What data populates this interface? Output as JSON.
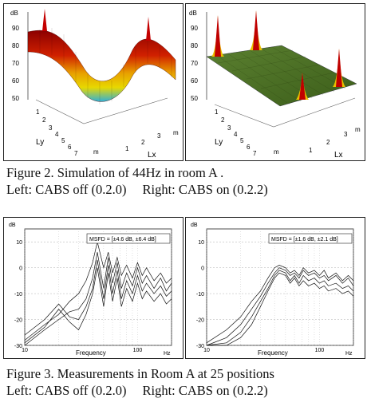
{
  "figure2": {
    "caption": "Figure 2. Simulation of 44Hz in room A .",
    "caption_left": "Left: CABS off (0.2.0)",
    "caption_right": "Right: CABS on (0.2.2)",
    "left_panel": {
      "z_unit": "dB",
      "z_ticks": [
        "90",
        "80",
        "70",
        "60",
        "50"
      ],
      "y_ticks": [
        "1",
        "2",
        "3",
        "4",
        "5",
        "6",
        "7"
      ],
      "y_label": "Ly",
      "y_unit": "m",
      "x_ticks": [
        "1",
        "2",
        "3"
      ],
      "x_label": "Lx",
      "x_unit": "m",
      "colors": {
        "high": "#a00000",
        "mid": "#e8c000",
        "low": "#20a8d0"
      }
    },
    "right_panel": {
      "z_unit": "dB",
      "z_ticks": [
        "90",
        "80",
        "70",
        "60",
        "50"
      ],
      "y_ticks": [
        "1",
        "2",
        "3",
        "4",
        "5",
        "6",
        "7"
      ],
      "y_label": "Ly",
      "y_unit": "m",
      "x_ticks": [
        "1",
        "2",
        "3"
      ],
      "x_label": "Lx",
      "x_unit": "m",
      "colors": {
        "surface": "#4a6e22",
        "peak": "#b00000"
      }
    }
  },
  "figure3": {
    "caption": "Figure 3. Measurements in Room A at 25 positions",
    "caption_left": "Left: CABS off (0.2.0)",
    "caption_right": "Right: CABS on (0.2.2)",
    "left_panel": {
      "y_unit": "dB",
      "y_ticks": [
        "10",
        "0",
        "-10",
        "-20",
        "-30"
      ],
      "x_ticks": [
        "10",
        "100"
      ],
      "x_unit": "Hz",
      "x_label": "Frequency",
      "legend": "MSFD = [±4.6 dB, ±6.4 dB]",
      "chart_data": {
        "type": "line",
        "x_scale": "log",
        "xlim": [
          10,
          200
        ],
        "ylim": [
          -30,
          15
        ],
        "series": [
          {
            "x": [
              10,
              15,
              20,
              25,
              30,
              35,
              40,
              44,
              50,
              55,
              60,
              66,
              72,
              80,
              90,
              100,
              110,
              120,
              140,
              160,
              180,
              200
            ],
            "values": [
              -28,
              -22,
              -18,
              -13,
              -10,
              -5,
              2,
              10,
              0,
              6,
              -2,
              4,
              -3,
              1,
              -4,
              2,
              -3,
              0,
              -5,
              -2,
              -6,
              -4
            ]
          },
          {
            "x": [
              10,
              15,
              20,
              25,
              30,
              35,
              40,
              44,
              50,
              55,
              60,
              66,
              72,
              80,
              90,
              100,
              110,
              120,
              140,
              160,
              180,
              200
            ],
            "values": [
              -30,
              -24,
              -20,
              -17,
              -16,
              -12,
              -4,
              6,
              -8,
              4,
              -6,
              2,
              -8,
              -2,
              -7,
              0,
              -6,
              -3,
              -8,
              -4,
              -9,
              -6
            ]
          },
          {
            "x": [
              10,
              15,
              20,
              25,
              30,
              35,
              40,
              44,
              50,
              55,
              60,
              66,
              72,
              80,
              90,
              100,
              110,
              120,
              140,
              160,
              180,
              200
            ],
            "values": [
              -26,
              -20,
              -14,
              -19,
              -20,
              -15,
              -8,
              3,
              -12,
              1,
              -10,
              -1,
              -12,
              -5,
              -10,
              -3,
              -9,
              -6,
              -10,
              -7,
              -11,
              -9
            ]
          },
          {
            "x": [
              10,
              15,
              20,
              25,
              30,
              35,
              40,
              44,
              50,
              55,
              60,
              66,
              72,
              80,
              90,
              100,
              110,
              120,
              140,
              160,
              180,
              200
            ],
            "values": [
              -29,
              -23,
              -16,
              -21,
              -24,
              -18,
              -10,
              0,
              -15,
              -2,
              -13,
              -4,
              -15,
              -8,
              -13,
              -6,
              -12,
              -9,
              -13,
              -10,
              -14,
              -12
            ]
          }
        ]
      }
    },
    "right_panel": {
      "y_unit": "dB",
      "y_ticks": [
        "10",
        "0",
        "-10",
        "-20",
        "-30"
      ],
      "x_ticks": [
        "10",
        "100"
      ],
      "x_unit": "Hz",
      "x_label": "Frequency",
      "legend": "MSFD = [±1.6 dB, ±2.1 dB]",
      "chart_data": {
        "type": "line",
        "x_scale": "log",
        "xlim": [
          10,
          200
        ],
        "ylim": [
          -30,
          15
        ],
        "series": [
          {
            "x": [
              10,
              15,
              20,
              25,
              30,
              35,
              40,
              44,
              50,
              55,
              60,
              66,
              72,
              80,
              90,
              100,
              110,
              120,
              140,
              160,
              180,
              200
            ],
            "values": [
              -30,
              -27,
              -22,
              -16,
              -11,
              -6,
              -2,
              0,
              -1,
              -3,
              -2,
              -4,
              -1,
              -3,
              -2,
              -4,
              -3,
              -5,
              -3,
              -6,
              -4,
              -7
            ]
          },
          {
            "x": [
              10,
              15,
              20,
              25,
              30,
              35,
              40,
              44,
              50,
              55,
              60,
              66,
              72,
              80,
              90,
              100,
              110,
              120,
              140,
              160,
              180,
              200
            ],
            "values": [
              -30,
              -29,
              -25,
              -19,
              -13,
              -8,
              -3,
              -1,
              -2,
              -5,
              -3,
              -6,
              -3,
              -5,
              -4,
              -6,
              -5,
              -7,
              -6,
              -8,
              -7,
              -9
            ]
          },
          {
            "x": [
              10,
              15,
              20,
              25,
              30,
              35,
              40,
              44,
              50,
              55,
              60,
              66,
              72,
              80,
              90,
              100,
              110,
              120,
              140,
              160,
              180,
              200
            ],
            "values": [
              -29,
              -24,
              -19,
              -13,
              -9,
              -4,
              0,
              1,
              0,
              -2,
              -1,
              -3,
              0,
              -2,
              -1,
              -3,
              -1,
              -4,
              -2,
              -5,
              -3,
              -5
            ]
          },
          {
            "x": [
              10,
              15,
              20,
              25,
              30,
              35,
              40,
              44,
              50,
              55,
              60,
              66,
              72,
              80,
              90,
              100,
              110,
              120,
              140,
              160,
              180,
              200
            ],
            "values": [
              -30,
              -30,
              -27,
              -22,
              -15,
              -9,
              -4,
              -2,
              -3,
              -6,
              -4,
              -7,
              -5,
              -7,
              -6,
              -8,
              -7,
              -9,
              -8,
              -10,
              -9,
              -11
            ]
          }
        ]
      }
    }
  }
}
